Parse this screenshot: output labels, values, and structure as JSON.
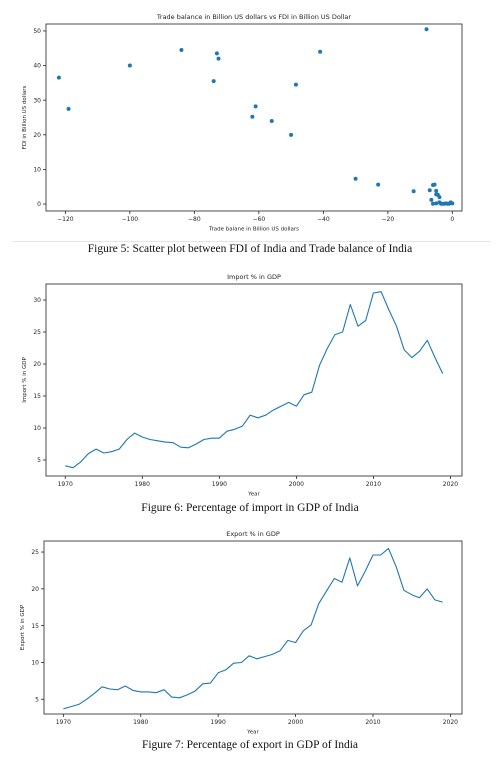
{
  "captions": {
    "fig5": "Figure 5: Scatter plot between FDI of India and Trade balance of India",
    "fig6": "Figure 6: Percentage of import in GDP of India",
    "fig7": "Figure 7: Percentage of export in GDP of India"
  },
  "chart_data": [
    {
      "type": "scatter",
      "title": "Trade balance in Billion US dollars vs FDI in Billion US Dollar",
      "xlabel": "Trade balane in Billion US dollars",
      "ylabel": "FDI in Billion US dollars",
      "xlim": [
        -126,
        3
      ],
      "ylim": [
        -2,
        52
      ],
      "xticks": [
        -120,
        -100,
        -80,
        -60,
        -40,
        -20,
        0
      ],
      "xtick_labels": [
        "−120",
        "−100",
        "−80",
        "−60",
        "−40",
        "−20",
        "0"
      ],
      "yticks": [
        0,
        10,
        20,
        30,
        40,
        50
      ],
      "grid": false,
      "color": "#1f77b4",
      "x": [
        -122,
        -119,
        -100,
        -84,
        -73,
        -72.5,
        -74,
        -62,
        -61,
        -56,
        -50,
        -48.5,
        -41,
        -30,
        -23,
        -12,
        -8,
        -7,
        -6,
        -5.5,
        -5,
        -4.5,
        -6.5,
        -4,
        -5,
        -6,
        -3.5,
        -3,
        -2.5,
        -2,
        -1.5,
        -1,
        -0.5,
        0,
        -5,
        -4
      ],
      "y": [
        36.5,
        27.5,
        40,
        44.5,
        43.5,
        42,
        35.5,
        25.2,
        28.2,
        24,
        20,
        34.5,
        44,
        7.3,
        5.6,
        3.7,
        50.5,
        4,
        5.5,
        5.6,
        3.8,
        2.7,
        1.2,
        0.5,
        0.2,
        0.1,
        0.1,
        0.1,
        0.1,
        0.2,
        0.1,
        0.1,
        0.5,
        0.2,
        2.8,
        2
      ]
    },
    {
      "type": "line",
      "title": "Import % in GDP",
      "xlabel": "Year",
      "ylabel": "Import % in GDP",
      "xlim": [
        1967.5,
        2021.5
      ],
      "ylim": [
        2.5,
        32.5
      ],
      "xticks": [
        1970,
        1980,
        1990,
        2000,
        2010,
        2020
      ],
      "yticks": [
        5,
        10,
        15,
        20,
        25,
        30
      ],
      "grid": false,
      "color": "#1f77b4",
      "x": [
        1970,
        1971,
        1972,
        1973,
        1974,
        1975,
        1976,
        1977,
        1978,
        1979,
        1980,
        1981,
        1982,
        1983,
        1984,
        1985,
        1986,
        1987,
        1988,
        1989,
        1990,
        1991,
        1992,
        1993,
        1994,
        1995,
        1996,
        1997,
        1998,
        1999,
        2000,
        2001,
        2002,
        2003,
        2004,
        2005,
        2006,
        2007,
        2008,
        2009,
        2010,
        2011,
        2012,
        2013,
        2014,
        2015,
        2016,
        2017,
        2018,
        2019
      ],
      "y": [
        4.1,
        3.8,
        4.7,
        6.0,
        6.7,
        6.1,
        6.3,
        6.7,
        8.2,
        9.2,
        8.6,
        8.2,
        8.0,
        7.8,
        7.7,
        7.0,
        6.9,
        7.5,
        8.2,
        8.4,
        8.4,
        9.5,
        9.8,
        10.3,
        12.0,
        11.6,
        12.0,
        12.8,
        13.4,
        14.0,
        13.4,
        15.2,
        15.6,
        19.8,
        22.4,
        24.6,
        25.0,
        29.3,
        25.9,
        26.8,
        31.1,
        31.3,
        28.5,
        25.9,
        22.2,
        21.0,
        22.0,
        23.7,
        21.0,
        18.5
      ]
    },
    {
      "type": "line",
      "title": "Export % in GDP",
      "xlabel": "Year",
      "ylabel": "Export % in GDP",
      "xlim": [
        1967.5,
        2021.5
      ],
      "ylim": [
        3.0,
        26.5
      ],
      "xticks": [
        1970,
        1980,
        1990,
        2000,
        2010,
        2020
      ],
      "yticks": [
        5,
        10,
        15,
        20,
        25
      ],
      "grid": false,
      "color": "#1f77b4",
      "x": [
        1970,
        1971,
        1972,
        1973,
        1974,
        1975,
        1976,
        1977,
        1978,
        1979,
        1980,
        1981,
        1982,
        1983,
        1984,
        1985,
        1986,
        1987,
        1988,
        1989,
        1990,
        1991,
        1992,
        1993,
        1994,
        1995,
        1996,
        1997,
        1998,
        1999,
        2000,
        2001,
        2002,
        2003,
        2004,
        2005,
        2006,
        2007,
        2008,
        2009,
        2010,
        2011,
        2012,
        2013,
        2014,
        2015,
        2016,
        2017,
        2018,
        2019
      ],
      "y": [
        3.7,
        4.0,
        4.3,
        5.0,
        5.8,
        6.7,
        6.4,
        6.3,
        6.8,
        6.2,
        6.0,
        6.0,
        5.9,
        6.3,
        5.3,
        5.2,
        5.6,
        6.1,
        7.1,
        7.2,
        8.6,
        9.0,
        9.9,
        10.0,
        10.9,
        10.5,
        10.8,
        11.1,
        11.6,
        13.0,
        12.7,
        14.3,
        15.1,
        18.0,
        19.7,
        21.4,
        20.9,
        24.2,
        20.4,
        22.4,
        24.6,
        24.6,
        25.5,
        23.0,
        19.8,
        19.2,
        18.8,
        20.0,
        18.5,
        18.2
      ]
    }
  ]
}
